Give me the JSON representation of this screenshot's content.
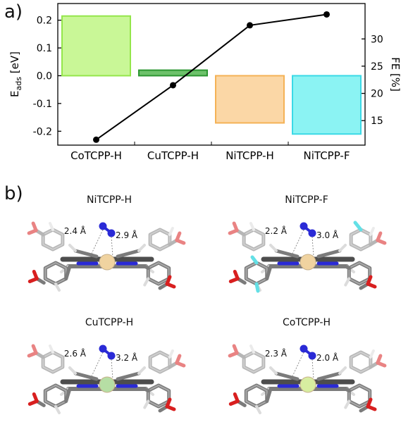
{
  "panel_a_label": "a)",
  "panel_b_label": "b)",
  "chart_data": {
    "type": "bar",
    "categories": [
      "CoTCPP-H",
      "CuTCPP-H",
      "NiTCPP-H",
      "NiTCPP-F"
    ],
    "series": [
      {
        "values": [
          0.215,
          0.02,
          -0.17,
          -0.21
        ],
        "fill_colors": [
          "#c9f797",
          "#6dc16a",
          "#fbd7a6",
          "#8bf3f3"
        ],
        "edge_colors": [
          "#94e64b",
          "#2c9632",
          "#f4b256",
          "#3bd9e6"
        ]
      },
      {
        "values": [
          11.5,
          21.5,
          32.5,
          34.5
        ],
        "axis": "right",
        "color": "#000000"
      }
    ],
    "ylabel_main": "E",
    "ylabel_sub": "ads",
    "ylabel_unit": " [eV]",
    "y2label": "FE [%]",
    "ylim": [
      -0.25,
      0.26
    ],
    "y2lim": [
      10.5,
      36.5
    ],
    "yticks": [
      0.2,
      0.1,
      0.0,
      -0.1,
      -0.2
    ],
    "ytick_labels": [
      "0.2",
      "0.1",
      "0.0",
      "-0.1",
      "-0.2"
    ],
    "y2ticks": [
      30,
      25,
      20,
      15
    ],
    "y2tick_labels": [
      "30",
      "25",
      "20",
      "15"
    ]
  },
  "molecules": [
    {
      "title": "NiTCPP-H",
      "metal": "Ni",
      "metal_color": "#f0d3a0",
      "d1": "2.4 Å",
      "d2": "2.9 Å",
      "fluorine": false
    },
    {
      "title": "NiTCPP-F",
      "metal": "Ni",
      "metal_color": "#f0d3a0",
      "d1": "2.2 Å",
      "d2": "3.0 Å",
      "fluorine": true
    },
    {
      "title": "CuTCPP-H",
      "metal": "Cu",
      "metal_color": "#b6dea4",
      "d1": "2.6 Å",
      "d2": "3.2 Å",
      "fluorine": false
    },
    {
      "title": "CoTCPP-H",
      "metal": "Co",
      "metal_color": "#d7eda0",
      "d1": "2.3 Å",
      "d2": "2.0 Å",
      "fluorine": false
    }
  ],
  "colors": {
    "carbon": "#7b7b7b",
    "carbon_dark": "#4d4d4d",
    "hydrogen": "#f2f2f2",
    "oxygen": "#d81f1f",
    "nitrogen": "#2a2ad6",
    "fluorine": "#63e0e6"
  }
}
